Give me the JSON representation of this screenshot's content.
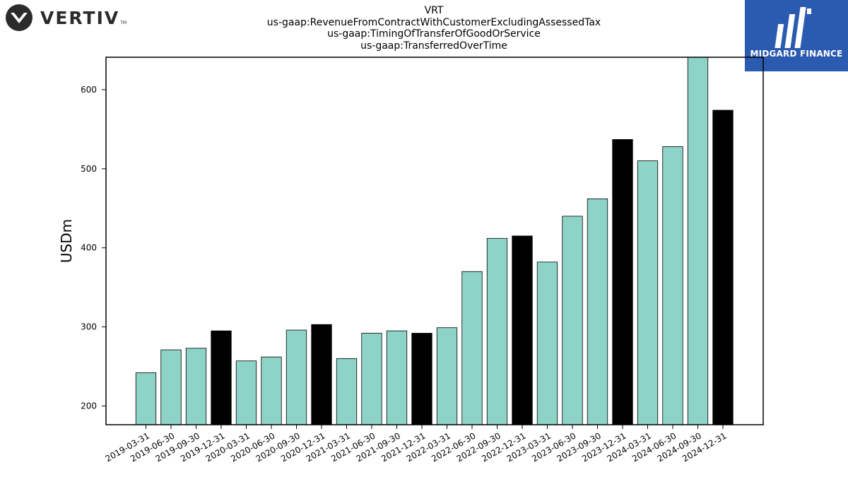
{
  "header": {
    "left_logo": {
      "icon": "vertiv-chevron-icon",
      "text": "VERTIV",
      "tm": "TM",
      "color": "#2b2b2b"
    },
    "right_logo": {
      "icon": "midgard-monogram-icon",
      "text": "MIDGARD FINANCE",
      "background": "#2a5bb0"
    }
  },
  "chart_data": {
    "type": "bar",
    "title_lines": [
      "VRT",
      "us-gaap:RevenueFromContractWithCustomerExcludingAssessedTax",
      "us-gaap:TimingOfTransferOfGoodOrService",
      "us-gaap:TransferredOverTime"
    ],
    "xlabel": "",
    "ylabel": "USDm",
    "ylim": [
      176,
      641
    ],
    "yticks": [
      200,
      300,
      400,
      500,
      600
    ],
    "grid": false,
    "categories": [
      "2019-03-31",
      "2019-06-30",
      "2019-09-30",
      "2019-12-31",
      "2020-03-31",
      "2020-06-30",
      "2020-09-30",
      "2020-12-31",
      "2021-03-31",
      "2021-06-30",
      "2021-09-30",
      "2021-12-31",
      "2022-03-31",
      "2022-06-30",
      "2022-09-30",
      "2022-12-31",
      "2023-03-31",
      "2023-06-30",
      "2023-09-30",
      "2023-12-31",
      "2024-03-31",
      "2024-06-30",
      "2024-09-30",
      "2024-12-31"
    ],
    "values": [
      242,
      271,
      273,
      295,
      257,
      262,
      296,
      303,
      260,
      292,
      295,
      292,
      299,
      370,
      412,
      415,
      382,
      440,
      462,
      537,
      510,
      528,
      645,
      574
    ],
    "bar_colors": {
      "quarter": "#8dd3c7",
      "year_end": "#000000"
    },
    "highlighted_categories": [
      "2019-12-31",
      "2020-12-31",
      "2021-12-31",
      "2022-12-31",
      "2023-12-31",
      "2024-12-31"
    ]
  }
}
